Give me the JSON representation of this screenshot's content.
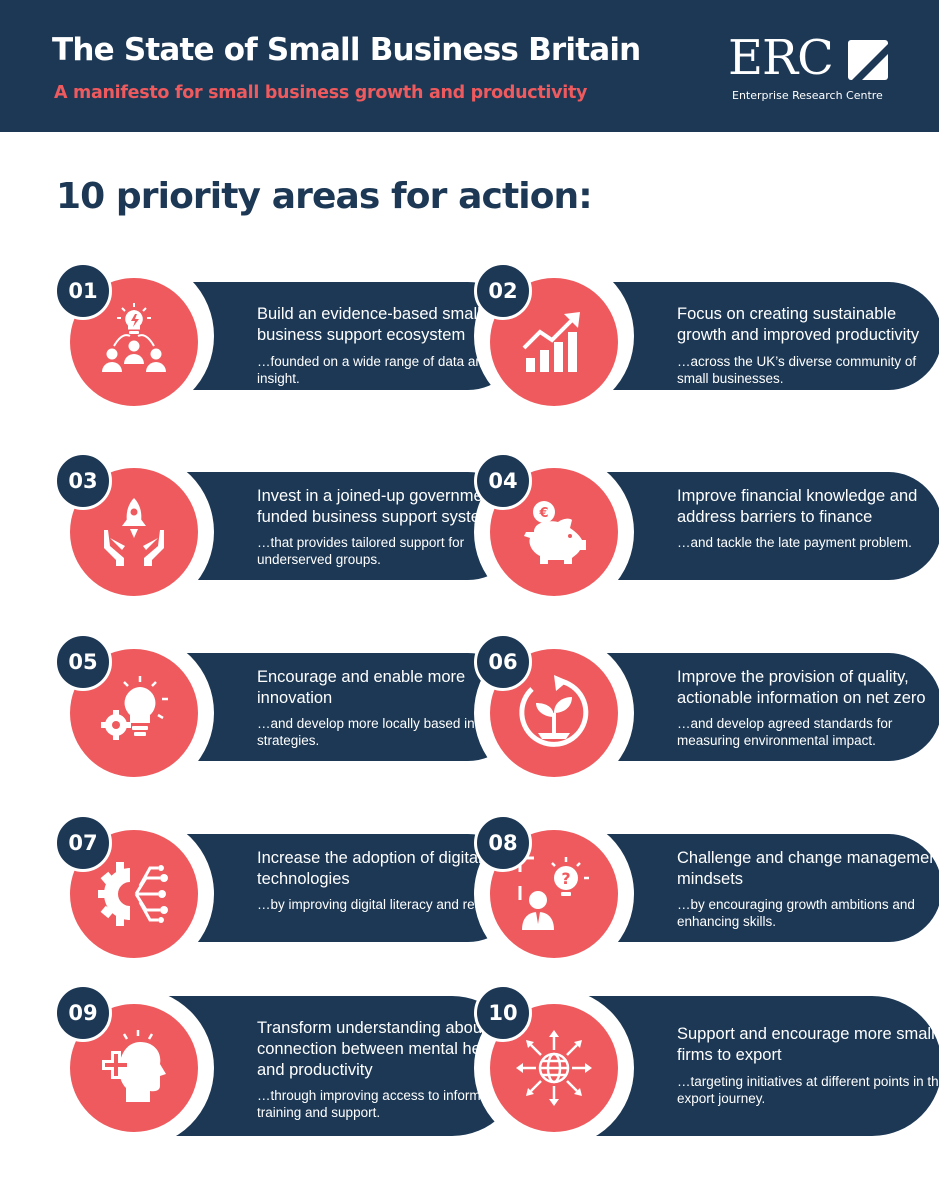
{
  "header": {
    "title": "The State of Small Business Britain",
    "subtitle": "A manifesto for small business growth and productivity"
  },
  "logo": {
    "text": "ERC",
    "subtext": "Enterprise Research Centre"
  },
  "section_heading": "10 priority areas for action:",
  "colors": {
    "navy": "#1c3855",
    "coral": "#ee5a5d",
    "white": "#ffffff"
  },
  "items": [
    {
      "number": "01",
      "icon": "people-idea-icon",
      "title": "Build an evidence-based small business support ecosystem",
      "description": "…founded on a wide range of data and insight."
    },
    {
      "number": "02",
      "icon": "growth-chart-icon",
      "title": "Focus on creating sustainable growth and improved productivity",
      "description": "…across the UK’s diverse community of small businesses."
    },
    {
      "number": "03",
      "icon": "hands-rocket-icon",
      "title": "Invest in a joined-up government -funded business support system",
      "description": "…that provides tailored support for underserved groups."
    },
    {
      "number": "04",
      "icon": "piggy-bank-euro-icon",
      "title": "Improve financial knowledge and address barriers to finance",
      "description": "…and tackle the late payment problem."
    },
    {
      "number": "05",
      "icon": "gear-lightbulb-icon",
      "title": "Encourage and enable more innovation",
      "description": "…and develop more locally based innovation strategies."
    },
    {
      "number": "06",
      "icon": "sprout-cycle-icon",
      "title": "Improve the provision of quality, actionable information on net zero",
      "description": "…and develop agreed standards for measuring environmental impact."
    },
    {
      "number": "07",
      "icon": "digital-gear-icon",
      "title": "Increase the adoption of digital technologies",
      "description": "…by improving digital literacy and readiness."
    },
    {
      "number": "08",
      "icon": "manager-question-icon",
      "title": "Challenge and change management mindsets",
      "description": "…by encouraging growth ambitions and enhancing skills."
    },
    {
      "number": "09",
      "icon": "mental-health-head-icon",
      "title": "Transform understanding about the connection between mental health and productivity",
      "description": "…through improving access to information, training and support."
    },
    {
      "number": "10",
      "icon": "globe-export-icon",
      "title": "Support and encourage more small firms to export",
      "description": "…targeting initiatives at different points in the export journey."
    }
  ]
}
